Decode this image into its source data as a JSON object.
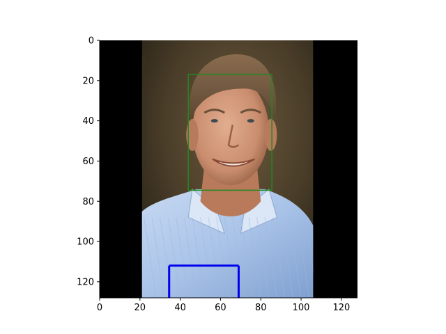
{
  "chart_data": {
    "type": "image",
    "title": "",
    "xlabel": "",
    "ylabel": "",
    "xlim": [
      0,
      128
    ],
    "ylim": [
      128,
      0
    ],
    "x_ticks": [
      "0",
      "20",
      "40",
      "60",
      "80",
      "100",
      "120"
    ],
    "y_ticks": [
      "0",
      "20",
      "40",
      "60",
      "80",
      "100",
      "120"
    ],
    "image_content": {
      "subject": "smiling man",
      "visible_area_x": [
        21,
        106
      ],
      "letterbox_color": "#000000"
    },
    "overlays": [
      {
        "name": "face-box",
        "color": "#1f8a1f",
        "x0": 44,
        "y0": 17,
        "x1": 85.5,
        "y1": 74.5,
        "sides": [
          "top",
          "bottom",
          "left",
          "right"
        ]
      },
      {
        "name": "lower-box",
        "color": "#0000ee",
        "x0": 34.5,
        "y0": 112,
        "x1": 69,
        "y1": 128,
        "sides": [
          "top",
          "left",
          "right"
        ]
      }
    ]
  }
}
